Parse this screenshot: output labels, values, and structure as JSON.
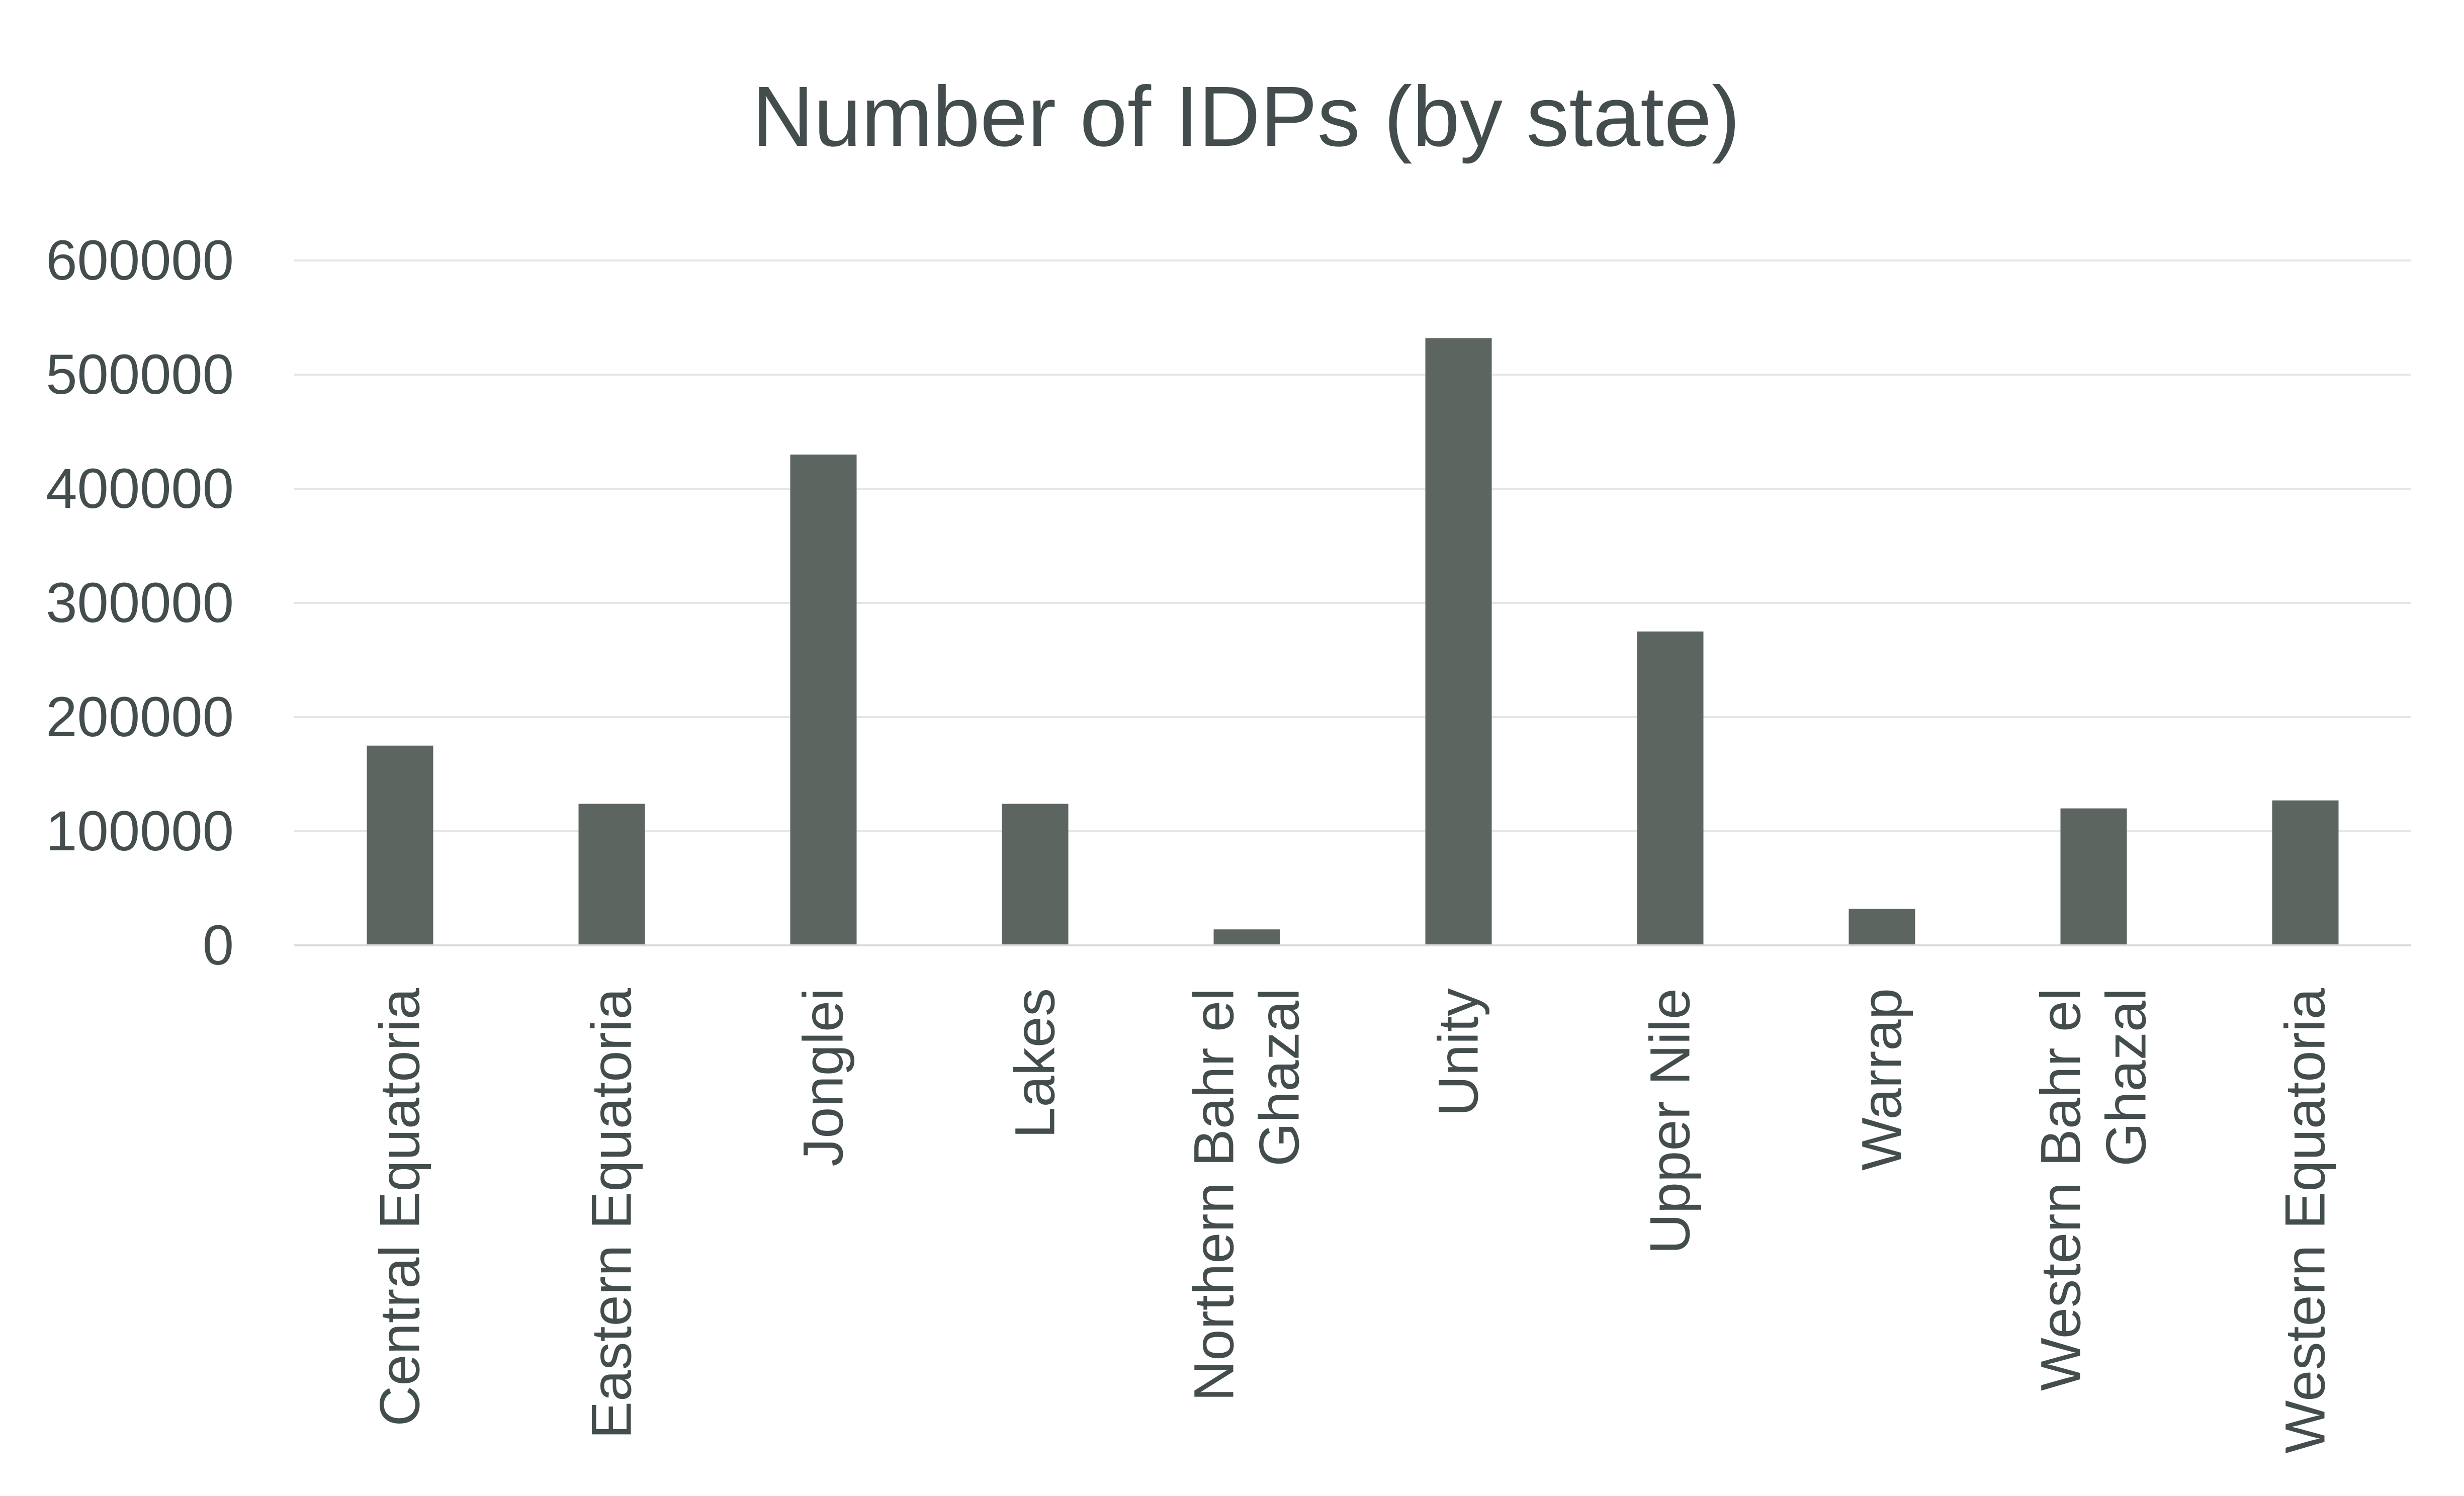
{
  "chart_data": {
    "type": "bar",
    "title": "Number of IDPs (by state)",
    "xlabel": "",
    "ylabel": "",
    "categories": [
      "Central Equatoria",
      "Eastern Equatoria",
      "Jonglei",
      "Lakes",
      "Northern Bahr el Ghazal",
      "Unity",
      "Upper Nile",
      "Warrap",
      "Western Bahr el Ghazal",
      "Western Equatoria"
    ],
    "category_lines": [
      [
        "Central Equatoria"
      ],
      [
        "Eastern Equatoria"
      ],
      [
        "Jonglei"
      ],
      [
        "Lakes"
      ],
      [
        "Northern Bahr el",
        "Ghazal"
      ],
      [
        "Unity"
      ],
      [
        "Upper Nile"
      ],
      [
        "Warrap"
      ],
      [
        "Western Bahr el",
        "Ghazal"
      ],
      [
        "Western Equatoria"
      ]
    ],
    "values": [
      175000,
      124000,
      430000,
      124000,
      14000,
      532000,
      275000,
      32000,
      120000,
      127000
    ],
    "ylim": [
      0,
      600000
    ],
    "yticks": [
      "0",
      "100000",
      "200000",
      "300000",
      "400000",
      "500000",
      "600000"
    ],
    "grid": true,
    "legend": "none",
    "colors": {
      "bar": "#5d6560",
      "text": "#444d4d",
      "grid": "#e6e6e6",
      "axis": "#d9d9d9",
      "background": "#ffffff"
    }
  }
}
